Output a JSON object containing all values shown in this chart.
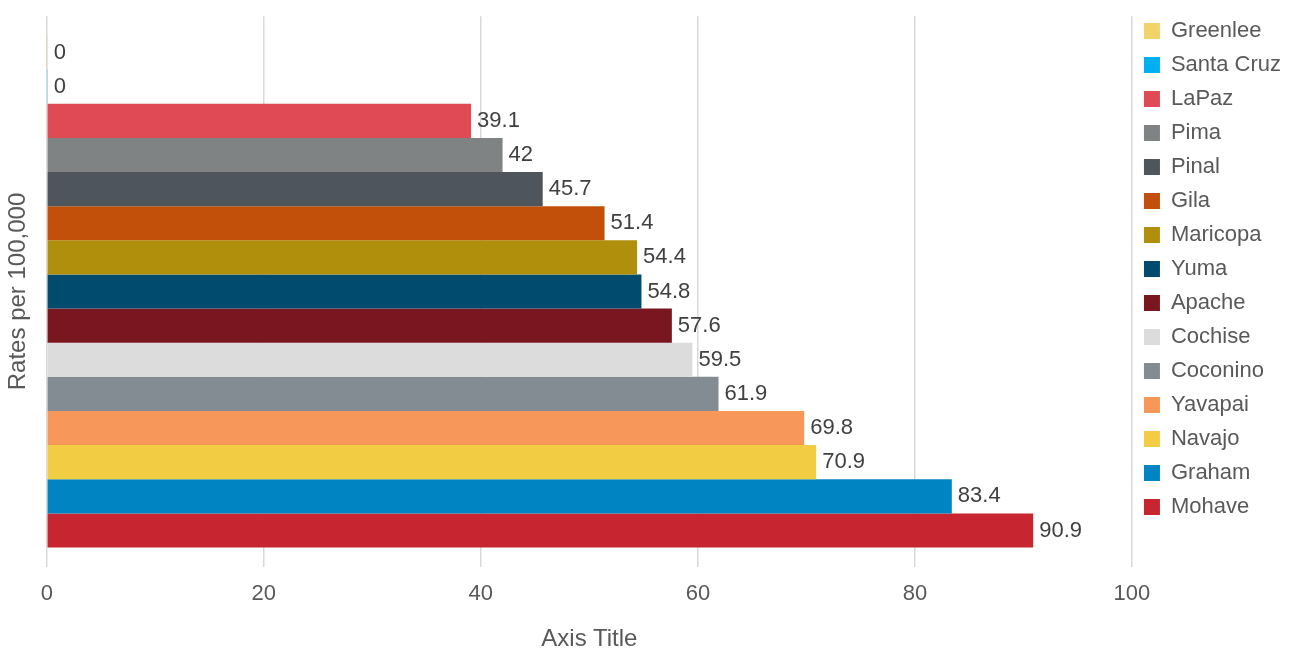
{
  "chart_data": {
    "type": "bar",
    "orientation": "horizontal",
    "xlabel": "Axis Title",
    "ylabel": "Rates per 100,000",
    "categories": [
      null
    ],
    "series": [
      {
        "name": "Greenlee",
        "color": "#f2d36b",
        "values": [
          0
        ]
      },
      {
        "name": "Santa Cruz",
        "color": "#00b0f0",
        "values": [
          0
        ]
      },
      {
        "name": "LaPaz",
        "color": "#e04a54",
        "values": [
          39.1
        ]
      },
      {
        "name": "Pima",
        "color": "#808384",
        "values": [
          42
        ]
      },
      {
        "name": "Pinal",
        "color": "#4e555c",
        "values": [
          45.7
        ]
      },
      {
        "name": "Gila",
        "color": "#c2500a",
        "values": [
          51.4
        ]
      },
      {
        "name": "Maricopa",
        "color": "#b08f0c",
        "values": [
          54.4
        ]
      },
      {
        "name": "Yuma",
        "color": "#004b6e",
        "values": [
          54.8
        ]
      },
      {
        "name": "Apache",
        "color": "#7a1620",
        "values": [
          57.6
        ]
      },
      {
        "name": "Cochise",
        "color": "#dcdcdc",
        "values": [
          59.5
        ]
      },
      {
        "name": "Coconino",
        "color": "#848c93",
        "values": [
          61.9
        ]
      },
      {
        "name": "Yavapai",
        "color": "#f7975a",
        "values": [
          69.8
        ]
      },
      {
        "name": "Navajo",
        "color": "#f2cd44",
        "values": [
          70.9
        ]
      },
      {
        "name": "Graham",
        "color": "#0084c2",
        "values": [
          83.4
        ]
      },
      {
        "name": "Mohave",
        "color": "#c7252f",
        "values": [
          90.9
        ]
      }
    ],
    "xlim": [
      0,
      100
    ],
    "xticks": [
      0,
      20,
      40,
      60,
      80,
      100
    ],
    "grid": "x",
    "legend": "right",
    "data_labels": true
  }
}
